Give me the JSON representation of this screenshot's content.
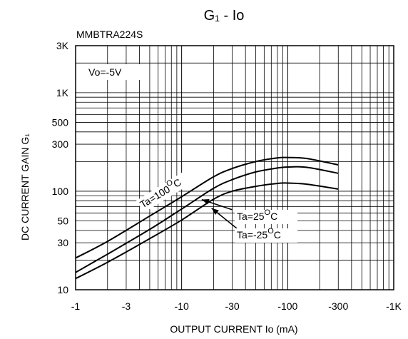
{
  "chart_data": {
    "type": "line",
    "title": "G₁ - Io",
    "subtitle": "MMBTRA224S",
    "xlabel": "OUTPUT CURRENT Io (mA)",
    "ylabel": "DC CURRENT GAIN G₁",
    "condition_label": "Vo=-5V",
    "x_scale": "log",
    "y_scale": "log",
    "xlim": [
      -1,
      -1000
    ],
    "ylim": [
      10,
      3000
    ],
    "grid": true,
    "x_ticks": [
      {
        "value": -1,
        "label": "-1"
      },
      {
        "value": -3,
        "label": "-3"
      },
      {
        "value": -10,
        "label": "-10"
      },
      {
        "value": -30,
        "label": "-30"
      },
      {
        "value": -100,
        "label": "-100"
      },
      {
        "value": -300,
        "label": "-300"
      },
      {
        "value": -1000,
        "label": "-1K"
      }
    ],
    "y_ticks": [
      {
        "value": 10,
        "label": "10"
      },
      {
        "value": 30,
        "label": "30"
      },
      {
        "value": 50,
        "label": "50"
      },
      {
        "value": 100,
        "label": "100"
      },
      {
        "value": 300,
        "label": "300"
      },
      {
        "value": 500,
        "label": "500"
      },
      {
        "value": 1000,
        "label": "1K"
      },
      {
        "value": 3000,
        "label": "3K"
      }
    ],
    "series": [
      {
        "name": "Ta=100°C",
        "label_main": "Ta=100",
        "label_sup": "O",
        "label_end": "C",
        "x": [
          -1,
          -2,
          -5,
          -10,
          -20,
          -30,
          -50,
          -80,
          -100,
          -150,
          -300
        ],
        "y": [
          21,
          31,
          56,
          88,
          140,
          170,
          200,
          218,
          220,
          215,
          185
        ]
      },
      {
        "name": "Ta=25°C",
        "label_main": "Ta=25",
        "label_sup": "O",
        "label_end": "C",
        "x": [
          -1,
          -2,
          -5,
          -10,
          -20,
          -30,
          -50,
          -80,
          -100,
          -150,
          -300
        ],
        "y": [
          15,
          23,
          41,
          66,
          107,
          131,
          157,
          172,
          176,
          175,
          152
        ]
      },
      {
        "name": "Ta=-25°C",
        "label_main": "Ta=-25",
        "label_sup": "O",
        "label_end": "C",
        "x": [
          -1,
          -2,
          -5,
          -10,
          -20,
          -30,
          -50,
          -80,
          -100,
          -150,
          -300
        ],
        "y": [
          13,
          19,
          33,
          51,
          83,
          100,
          112,
          120,
          121,
          118,
          105
        ]
      }
    ]
  }
}
